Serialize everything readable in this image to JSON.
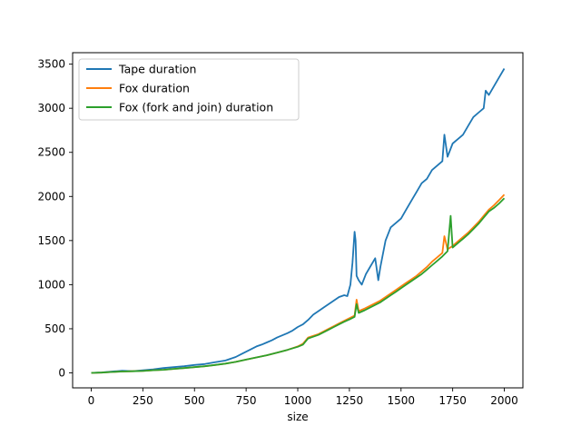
{
  "chart_data": {
    "type": "line",
    "title": "",
    "xlabel": "size",
    "ylabel": "",
    "xlim": [
      -90,
      2090
    ],
    "ylim": [
      -170,
      3630
    ],
    "xticks": [
      0,
      250,
      500,
      750,
      1000,
      1250,
      1500,
      1750,
      2000
    ],
    "yticks": [
      0,
      500,
      1000,
      1500,
      2000,
      2500,
      3000,
      3500
    ],
    "legend_position": "top-left",
    "grid": false,
    "series": [
      {
        "name": "Tape duration",
        "color": "#1f77b4",
        "points": [
          [
            0,
            0
          ],
          [
            50,
            5
          ],
          [
            100,
            15
          ],
          [
            125,
            20
          ],
          [
            150,
            25
          ],
          [
            200,
            20
          ],
          [
            250,
            30
          ],
          [
            300,
            40
          ],
          [
            350,
            55
          ],
          [
            400,
            65
          ],
          [
            450,
            75
          ],
          [
            500,
            90
          ],
          [
            550,
            100
          ],
          [
            600,
            120
          ],
          [
            650,
            140
          ],
          [
            700,
            180
          ],
          [
            725,
            210
          ],
          [
            750,
            240
          ],
          [
            775,
            270
          ],
          [
            800,
            300
          ],
          [
            825,
            320
          ],
          [
            850,
            345
          ],
          [
            875,
            370
          ],
          [
            900,
            400
          ],
          [
            925,
            425
          ],
          [
            950,
            450
          ],
          [
            975,
            480
          ],
          [
            1000,
            520
          ],
          [
            1025,
            550
          ],
          [
            1050,
            600
          ],
          [
            1075,
            660
          ],
          [
            1100,
            700
          ],
          [
            1125,
            740
          ],
          [
            1150,
            780
          ],
          [
            1175,
            820
          ],
          [
            1200,
            860
          ],
          [
            1225,
            880
          ],
          [
            1240,
            870
          ],
          [
            1255,
            1000
          ],
          [
            1265,
            1250
          ],
          [
            1275,
            1600
          ],
          [
            1280,
            1500
          ],
          [
            1285,
            1100
          ],
          [
            1295,
            1050
          ],
          [
            1310,
            1000
          ],
          [
            1330,
            1120
          ],
          [
            1350,
            1200
          ],
          [
            1375,
            1300
          ],
          [
            1390,
            1050
          ],
          [
            1400,
            1200
          ],
          [
            1425,
            1500
          ],
          [
            1450,
            1650
          ],
          [
            1475,
            1700
          ],
          [
            1500,
            1750
          ],
          [
            1525,
            1850
          ],
          [
            1550,
            1950
          ],
          [
            1575,
            2050
          ],
          [
            1600,
            2150
          ],
          [
            1625,
            2200
          ],
          [
            1650,
            2300
          ],
          [
            1675,
            2350
          ],
          [
            1700,
            2400
          ],
          [
            1710,
            2700
          ],
          [
            1725,
            2450
          ],
          [
            1750,
            2600
          ],
          [
            1775,
            2650
          ],
          [
            1800,
            2700
          ],
          [
            1825,
            2800
          ],
          [
            1850,
            2900
          ],
          [
            1875,
            2950
          ],
          [
            1900,
            3000
          ],
          [
            1910,
            3200
          ],
          [
            1925,
            3150
          ],
          [
            1950,
            3250
          ],
          [
            1975,
            3350
          ],
          [
            2000,
            3450
          ]
        ]
      },
      {
        "name": "Fox duration",
        "color": "#ff7f0e",
        "points": [
          [
            0,
            0
          ],
          [
            50,
            3
          ],
          [
            100,
            10
          ],
          [
            150,
            15
          ],
          [
            200,
            18
          ],
          [
            250,
            22
          ],
          [
            300,
            30
          ],
          [
            350,
            35
          ],
          [
            400,
            45
          ],
          [
            450,
            55
          ],
          [
            500,
            65
          ],
          [
            550,
            75
          ],
          [
            600,
            90
          ],
          [
            650,
            105
          ],
          [
            700,
            125
          ],
          [
            750,
            150
          ],
          [
            800,
            175
          ],
          [
            850,
            200
          ],
          [
            900,
            230
          ],
          [
            950,
            260
          ],
          [
            1000,
            300
          ],
          [
            1025,
            330
          ],
          [
            1050,
            400
          ],
          [
            1075,
            420
          ],
          [
            1100,
            440
          ],
          [
            1125,
            470
          ],
          [
            1150,
            500
          ],
          [
            1175,
            530
          ],
          [
            1200,
            560
          ],
          [
            1225,
            590
          ],
          [
            1250,
            620
          ],
          [
            1275,
            650
          ],
          [
            1285,
            830
          ],
          [
            1295,
            700
          ],
          [
            1325,
            730
          ],
          [
            1350,
            760
          ],
          [
            1375,
            790
          ],
          [
            1400,
            820
          ],
          [
            1425,
            860
          ],
          [
            1450,
            900
          ],
          [
            1475,
            940
          ],
          [
            1500,
            980
          ],
          [
            1525,
            1020
          ],
          [
            1550,
            1060
          ],
          [
            1575,
            1100
          ],
          [
            1600,
            1150
          ],
          [
            1625,
            1200
          ],
          [
            1650,
            1260
          ],
          [
            1675,
            1310
          ],
          [
            1700,
            1360
          ],
          [
            1710,
            1550
          ],
          [
            1725,
            1400
          ],
          [
            1750,
            1440
          ],
          [
            1775,
            1490
          ],
          [
            1800,
            1540
          ],
          [
            1825,
            1590
          ],
          [
            1850,
            1650
          ],
          [
            1875,
            1710
          ],
          [
            1900,
            1780
          ],
          [
            1925,
            1850
          ],
          [
            1950,
            1900
          ],
          [
            1975,
            1960
          ],
          [
            2000,
            2020
          ]
        ]
      },
      {
        "name": "Fox (fork and join) duration",
        "color": "#2ca02c",
        "points": [
          [
            0,
            0
          ],
          [
            50,
            3
          ],
          [
            100,
            10
          ],
          [
            150,
            15
          ],
          [
            200,
            18
          ],
          [
            250,
            22
          ],
          [
            300,
            30
          ],
          [
            350,
            35
          ],
          [
            400,
            45
          ],
          [
            450,
            55
          ],
          [
            500,
            65
          ],
          [
            550,
            75
          ],
          [
            600,
            90
          ],
          [
            650,
            105
          ],
          [
            700,
            125
          ],
          [
            750,
            150
          ],
          [
            800,
            175
          ],
          [
            850,
            200
          ],
          [
            900,
            230
          ],
          [
            950,
            260
          ],
          [
            1000,
            295
          ],
          [
            1025,
            320
          ],
          [
            1050,
            390
          ],
          [
            1075,
            410
          ],
          [
            1100,
            430
          ],
          [
            1125,
            460
          ],
          [
            1150,
            490
          ],
          [
            1175,
            520
          ],
          [
            1200,
            550
          ],
          [
            1225,
            580
          ],
          [
            1250,
            605
          ],
          [
            1275,
            635
          ],
          [
            1285,
            780
          ],
          [
            1295,
            680
          ],
          [
            1325,
            710
          ],
          [
            1350,
            740
          ],
          [
            1375,
            770
          ],
          [
            1400,
            800
          ],
          [
            1425,
            840
          ],
          [
            1450,
            880
          ],
          [
            1475,
            920
          ],
          [
            1500,
            960
          ],
          [
            1525,
            1000
          ],
          [
            1550,
            1040
          ],
          [
            1575,
            1080
          ],
          [
            1600,
            1120
          ],
          [
            1625,
            1170
          ],
          [
            1650,
            1220
          ],
          [
            1675,
            1270
          ],
          [
            1700,
            1320
          ],
          [
            1725,
            1380
          ],
          [
            1740,
            1780
          ],
          [
            1750,
            1420
          ],
          [
            1775,
            1470
          ],
          [
            1800,
            1520
          ],
          [
            1825,
            1570
          ],
          [
            1850,
            1630
          ],
          [
            1875,
            1690
          ],
          [
            1900,
            1760
          ],
          [
            1925,
            1830
          ],
          [
            1950,
            1870
          ],
          [
            1975,
            1920
          ],
          [
            2000,
            1980
          ]
        ]
      }
    ]
  }
}
